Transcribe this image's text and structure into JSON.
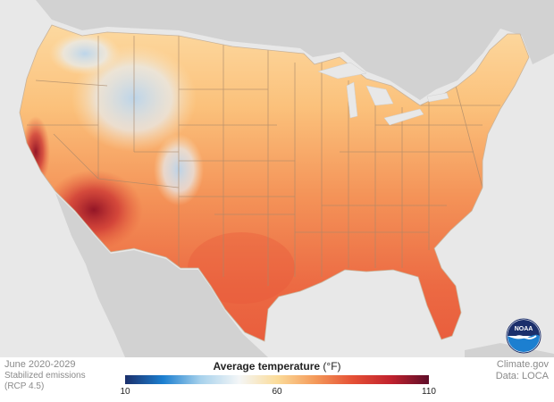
{
  "footer": {
    "period": "June 2020-2029",
    "scenario_line1": "Stabilized emissions",
    "scenario_line2": "(RCP 4.5)",
    "source": "Climate.gov",
    "data_credit": "Data: LOCA"
  },
  "legend": {
    "title": "Average temperature",
    "unit": "(°F)",
    "ticks": [
      "10",
      "60",
      "110"
    ],
    "tick_values": [
      10,
      60,
      110
    ],
    "range": [
      10,
      110
    ],
    "colors": [
      "#1b2f6b",
      "#1c7fd0",
      "#a8d2ec",
      "#f4f6f7",
      "#fbdc9a",
      "#f49a5a",
      "#e55035",
      "#c1222e",
      "#5e0d29"
    ]
  },
  "logo": {
    "label": "NOAA"
  },
  "map": {
    "region": "Contiguous United States",
    "colors": {
      "ocean": "#e8e8e8",
      "neighbor_land": "#d2d2d2",
      "state_border": "#a7876a",
      "hot_southwest": "#b31a26",
      "warm_south": "#ec6a43",
      "mild_north": "#fbc27b",
      "cool_mountains": "#c9def0"
    }
  }
}
